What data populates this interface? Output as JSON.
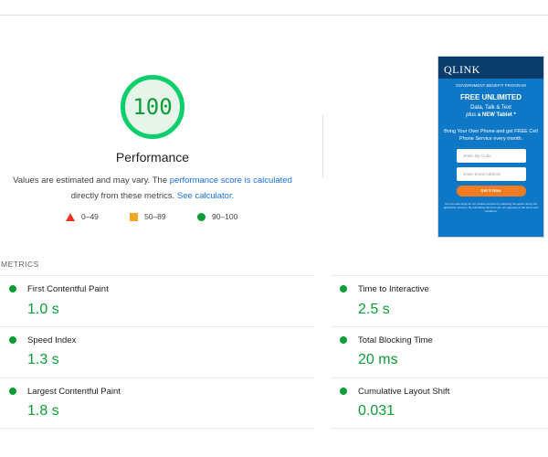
{
  "performance": {
    "score": "100",
    "title": "Performance",
    "desc_prefix": "Values are estimated and may vary. The ",
    "desc_link1": "performance score is calculated",
    "desc_middle": "directly from these metrics. ",
    "desc_link2": "See calculator.",
    "score_color": "#0c9d36"
  },
  "legend": [
    {
      "range": "0–49",
      "shape": "triangle-icon",
      "color": "#e8331f"
    },
    {
      "range": "50–89",
      "shape": "square-icon",
      "color": "#f5a623"
    },
    {
      "range": "90–100",
      "shape": "circle-icon",
      "color": "#0c9d36"
    }
  ],
  "thumbnail": {
    "logo": "QLINK",
    "gov": "GOVERNMENT BENEFIT PROGRAM",
    "headline": "FREE UNLIMITED",
    "sub1": "Data, Talk & Text",
    "sub2_em": "plus",
    "sub2_rest": "a NEW Tablet *",
    "byop": "Bring Your Own Phone and get FREE Cell Phone Service every month.",
    "zip_placeholder": "Enter Zip Code",
    "email_placeholder": "Enter Email Address",
    "cta": "Get It Now",
    "fine": "You can also apply for our Lifeline services by selecting the option during the application process. By submitting this form you are agreeing to the terms and conditions."
  },
  "metrics": {
    "section_label": "METRICS",
    "items": [
      {
        "label": "First Contentful Paint",
        "value": "1.0 s"
      },
      {
        "label": "Time to Interactive",
        "value": "2.5 s"
      },
      {
        "label": "Speed Index",
        "value": "1.3 s"
      },
      {
        "label": "Total Blocking Time",
        "value": "20 ms"
      },
      {
        "label": "Largest Contentful Paint",
        "value": "1.8 s"
      },
      {
        "label": "Cumulative Layout Shift",
        "value": "0.031"
      }
    ]
  }
}
